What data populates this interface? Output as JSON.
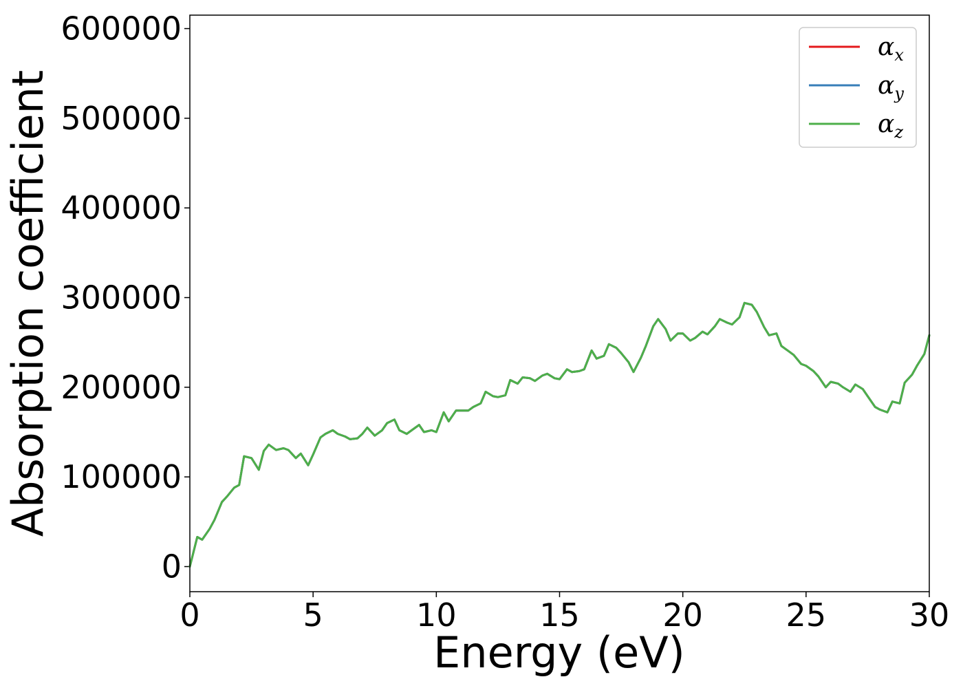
{
  "chart_data": {
    "type": "line",
    "xlabel": "Energy (eV)",
    "ylabel": "Absorption coefficient",
    "xlim": [
      0,
      30
    ],
    "ylim": [
      -28000,
      615000
    ],
    "xticks": [
      0,
      5,
      10,
      15,
      20,
      25,
      30
    ],
    "yticks": [
      0,
      100000,
      200000,
      300000,
      400000,
      500000,
      600000
    ],
    "grid": false,
    "legend_position": "top-right",
    "series": [
      {
        "name": "α",
        "sub": "x",
        "color": "#e41a1c"
      },
      {
        "name": "α",
        "sub": "y",
        "color": "#377eb8"
      },
      {
        "name": "α",
        "sub": "z",
        "color": "#4daf4a"
      }
    ],
    "x": [
      0,
      0.3,
      0.5,
      0.8,
      1.0,
      1.3,
      1.5,
      1.8,
      2.0,
      2.2,
      2.5,
      2.8,
      3.0,
      3.2,
      3.5,
      3.8,
      4.0,
      4.3,
      4.5,
      4.8,
      5.0,
      5.3,
      5.5,
      5.8,
      6.0,
      6.3,
      6.5,
      6.8,
      7.0,
      7.2,
      7.5,
      7.8,
      8.0,
      8.3,
      8.5,
      8.8,
      9.0,
      9.3,
      9.5,
      9.8,
      10.0,
      10.3,
      10.5,
      10.8,
      11.0,
      11.3,
      11.5,
      11.8,
      12.0,
      12.3,
      12.5,
      12.8,
      13.0,
      13.3,
      13.5,
      13.8,
      14.0,
      14.3,
      14.5,
      14.8,
      15.0,
      15.3,
      15.5,
      15.8,
      16.0,
      16.3,
      16.5,
      16.8,
      17.0,
      17.3,
      17.5,
      17.8,
      18.0,
      18.3,
      18.5,
      18.8,
      19.0,
      19.3,
      19.5,
      19.8,
      20.0,
      20.3,
      20.5,
      20.8,
      21.0,
      21.3,
      21.5,
      21.8,
      22.0,
      22.3,
      22.5,
      22.8,
      23.0,
      23.3,
      23.5,
      23.8,
      24.0,
      24.3,
      24.5,
      24.8,
      25.0,
      25.3,
      25.5,
      25.8,
      26.0,
      26.3,
      26.5,
      26.8,
      27.0,
      27.3,
      27.5,
      27.8,
      28.0,
      28.3,
      28.5,
      28.8,
      29.0,
      29.3,
      29.5,
      29.8,
      30.0
    ],
    "values": [
      0,
      33000,
      30000,
      42000,
      52000,
      72000,
      78000,
      88000,
      91000,
      123000,
      121000,
      108000,
      129000,
      136000,
      130000,
      132000,
      130000,
      121000,
      126000,
      113000,
      125000,
      144000,
      148000,
      152000,
      148000,
      145000,
      142000,
      143000,
      148000,
      155000,
      146000,
      152000,
      160000,
      164000,
      152000,
      148000,
      152000,
      158000,
      150000,
      152000,
      150000,
      172000,
      162000,
      174000,
      174000,
      174000,
      178000,
      182000,
      195000,
      190000,
      189000,
      191000,
      208000,
      204000,
      211000,
      210000,
      207000,
      213000,
      215000,
      210000,
      209000,
      220000,
      217000,
      218000,
      220000,
      241000,
      232000,
      235000,
      248000,
      244000,
      238000,
      228000,
      217000,
      233000,
      246000,
      268000,
      276000,
      265000,
      252000,
      260000,
      260000,
      252000,
      255000,
      262000,
      259000,
      268000,
      276000,
      272000,
      270000,
      278000,
      294000,
      292000,
      284000,
      267000,
      258000,
      260000,
      246000,
      240000,
      236000,
      226000,
      224000,
      218000,
      212000,
      200000,
      206000,
      204000,
      200000,
      195000,
      203000,
      198000,
      190000,
      178000,
      175000,
      172000,
      184000,
      182000,
      205000,
      214000,
      224000,
      237000,
      258000
    ]
  }
}
